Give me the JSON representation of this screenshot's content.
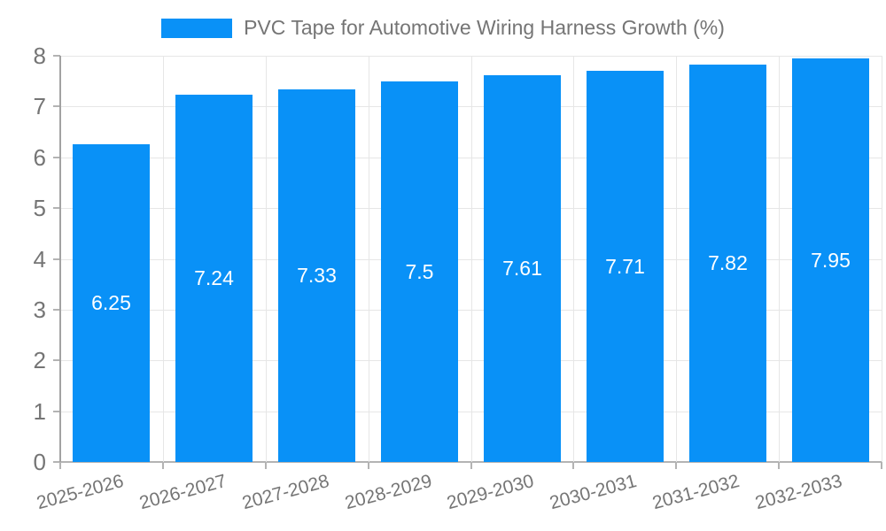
{
  "chart_data": {
    "type": "bar",
    "title": "",
    "legend_entries": [
      "PVC Tape for Automotive Wiring Harness Growth (%)"
    ],
    "legend_position": "top-center",
    "categories": [
      "2025-2026",
      "2026-2027",
      "2027-2028",
      "2028-2029",
      "2029-2030",
      "2030-2031",
      "2031-2032",
      "2032-2033"
    ],
    "values": [
      6.25,
      7.24,
      7.33,
      7.5,
      7.61,
      7.71,
      7.82,
      7.95
    ],
    "value_labels": [
      "6.25",
      "7.24",
      "7.33",
      "7.5",
      "7.61",
      "7.71",
      "7.82",
      "7.95"
    ],
    "xlabel": "",
    "ylabel": "",
    "ylim": [
      0,
      8
    ],
    "y_ticks": [
      "0",
      "1",
      "2",
      "3",
      "4",
      "5",
      "6",
      "7",
      "8"
    ],
    "grid": true,
    "colors": {
      "bar": "#0991f7",
      "value_label": "#ffffff",
      "axis_text": "#757575",
      "grid_line": "#e6e6e6",
      "axis_line": "#b3b3b3",
      "y_axis_line": "#a2a2a2"
    }
  }
}
